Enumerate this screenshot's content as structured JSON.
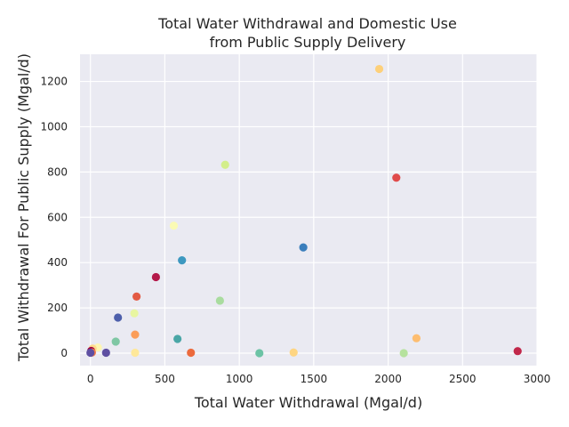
{
  "chart_data": {
    "type": "scatter",
    "title_line1": "Total Water Withdrawal and Domestic Use",
    "title_line2": "from Public Supply Delivery",
    "xlabel": "Total Water Withdrawal (Mgal/d)",
    "ylabel": "Total Withdrawal For Public Supply (Mgal/d)",
    "xlim": [
      -70,
      3000
    ],
    "ylim": [
      -55,
      1320
    ],
    "xticks": [
      0,
      500,
      1000,
      1500,
      2000,
      2500,
      3000
    ],
    "yticks": [
      0,
      200,
      400,
      600,
      800,
      1000,
      1200
    ],
    "grid": true,
    "background_color": "#eaeaf2",
    "points": [
      {
        "x": 1940,
        "y": 1255,
        "color": "#fdd07a"
      },
      {
        "x": 905,
        "y": 832,
        "color": "#d3ee8a"
      },
      {
        "x": 2055,
        "y": 775,
        "color": "#e04b4b"
      },
      {
        "x": 560,
        "y": 563,
        "color": "#fafab4"
      },
      {
        "x": 1430,
        "y": 467,
        "color": "#3a7ebc"
      },
      {
        "x": 615,
        "y": 410,
        "color": "#3d98c0"
      },
      {
        "x": 440,
        "y": 336,
        "color": "#b4194a"
      },
      {
        "x": 310,
        "y": 250,
        "color": "#e35a44"
      },
      {
        "x": 870,
        "y": 232,
        "color": "#a9dc9f"
      },
      {
        "x": 295,
        "y": 176,
        "color": "#e8f6a1"
      },
      {
        "x": 185,
        "y": 157,
        "color": "#4d5fab"
      },
      {
        "x": 300,
        "y": 82,
        "color": "#fb9d59"
      },
      {
        "x": 585,
        "y": 63,
        "color": "#4aa6a6"
      },
      {
        "x": 2190,
        "y": 66,
        "color": "#fdbd70"
      },
      {
        "x": 170,
        "y": 51,
        "color": "#7fc7a4"
      },
      {
        "x": 50,
        "y": 25,
        "color": "#fef6b0"
      },
      {
        "x": 15,
        "y": 20,
        "color": "#fed98b"
      },
      {
        "x": 5,
        "y": 10,
        "color": "#9e0142"
      },
      {
        "x": 10,
        "y": 3,
        "color": "#f47a48"
      },
      {
        "x": 0,
        "y": 2,
        "color": "#5e4fa2"
      },
      {
        "x": 105,
        "y": 2,
        "color": "#5e4fa2"
      },
      {
        "x": 300,
        "y": 2,
        "color": "#fee89a"
      },
      {
        "x": 675,
        "y": 2,
        "color": "#ec6a3d"
      },
      {
        "x": 1135,
        "y": 0,
        "color": "#6cc3a5"
      },
      {
        "x": 1365,
        "y": 3,
        "color": "#fed582"
      },
      {
        "x": 2105,
        "y": 0,
        "color": "#b6e29e"
      },
      {
        "x": 2870,
        "y": 9,
        "color": "#c1274a"
      }
    ]
  }
}
